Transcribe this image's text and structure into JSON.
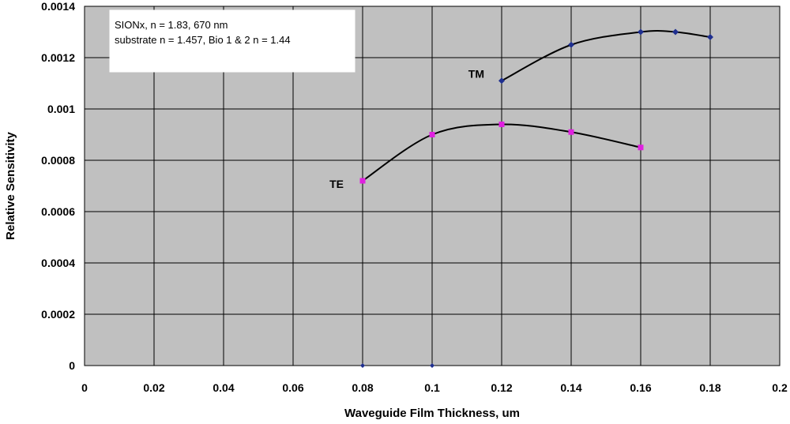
{
  "chart_data": {
    "type": "line",
    "title": "",
    "xlabel": "Waveguide Film Thickness, um",
    "ylabel": "Relative Sensitivity",
    "xlim": [
      0,
      0.2
    ],
    "ylim": [
      0,
      0.0014
    ],
    "xticks": [
      "0",
      "0.02",
      "0.04",
      "0.06",
      "0.08",
      "0.1",
      "0.12",
      "0.14",
      "0.16",
      "0.18",
      "0.2"
    ],
    "yticks": [
      "0",
      "0.0002",
      "0.0004",
      "0.0006",
      "0.0008",
      "0.001",
      "0.0012",
      "0.0014"
    ],
    "grid": true,
    "plot_background": "#c0c0c0",
    "annotation_lines": [
      "SIONx, n = 1.83, 670 nm",
      "substrate n = 1.457, Bio 1 & 2 n = 1.44"
    ],
    "series": [
      {
        "name": "TM",
        "color": "#1f2f8f",
        "marker_color": "#1f2f8f",
        "x": [
          0.12,
          0.14,
          0.16,
          0.17,
          0.18
        ],
        "y": [
          0.00111,
          0.00125,
          0.0013,
          0.0013,
          0.00128
        ]
      },
      {
        "name": "TE",
        "color": "#000000",
        "marker_color": "#e020e0",
        "x": [
          0.08,
          0.1,
          0.12,
          0.14,
          0.16
        ],
        "y": [
          0.00072,
          0.0009,
          0.00094,
          0.00091,
          0.00085
        ]
      }
    ],
    "extra_points": {
      "color": "#1f2f8f",
      "x": [
        0.08,
        0.1
      ],
      "y": [
        0,
        0
      ]
    }
  }
}
